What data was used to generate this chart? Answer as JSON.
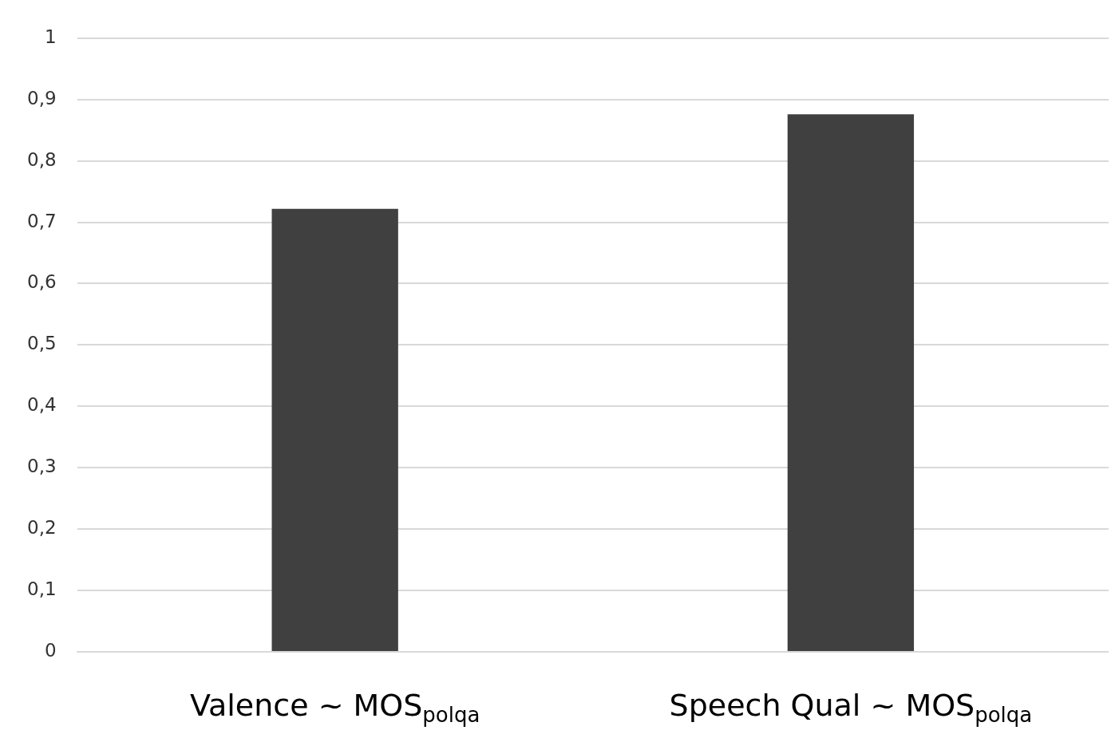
{
  "chart_data": {
    "type": "bar",
    "categories": [
      "Valence ~ MOS$_{polqa}$",
      "Speech Qual ~ MOS$_{polqa}$"
    ],
    "values": [
      0.722,
      0.876
    ],
    "color": "#404040",
    "ylim": [
      0,
      1
    ],
    "yticks": [
      0,
      {
        "value": 0.1,
        "label": "0,1"
      },
      {
        "value": 0.2,
        "label": "0,2"
      },
      {
        "value": 0.3,
        "label": "0,3"
      },
      {
        "value": 0.4,
        "label": "0,4"
      },
      {
        "value": 0.5,
        "label": "0,5"
      },
      {
        "value": 0.6,
        "label": "0,6"
      },
      {
        "value": 0.7,
        "label": "0,7"
      },
      {
        "value": 0.8,
        "label": "0,8"
      },
      {
        "value": 0.9,
        "label": "0,9"
      },
      1
    ],
    "grid": "y",
    "legend": false
  }
}
